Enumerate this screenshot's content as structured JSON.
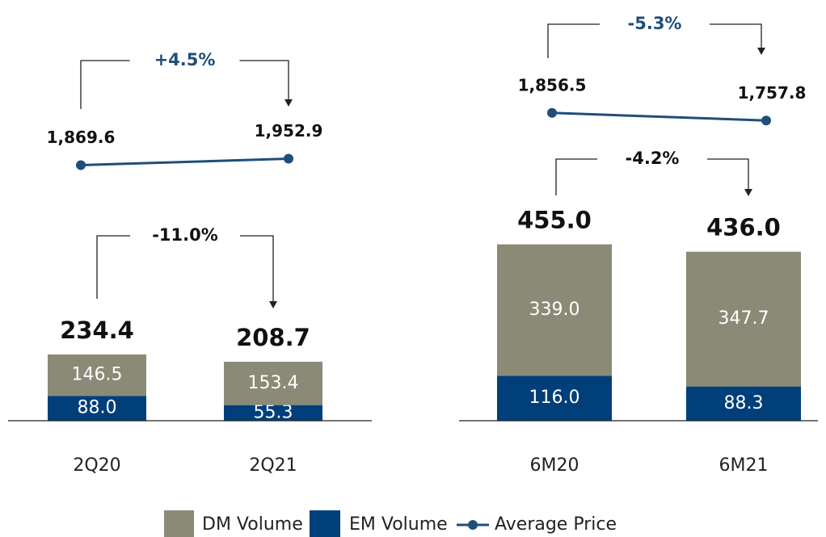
{
  "chart_data": [
    {
      "type": "bar",
      "stacked": true,
      "categories": [
        "2Q20",
        "2Q21"
      ],
      "series": [
        {
          "name": "DM Volume",
          "color": "#8b8a77",
          "values": [
            146.5,
            153.4
          ],
          "value_labels": [
            "146.5",
            "153.4"
          ]
        },
        {
          "name": "EM Volume",
          "color": "#003f7a",
          "values": [
            88.0,
            55.3
          ],
          "value_labels": [
            "88.0",
            "55.3"
          ]
        },
        {
          "name": "Average Price",
          "type": "line",
          "axis": "y2",
          "color": "#1f4e79",
          "values": [
            1869.6,
            1952.9
          ],
          "value_labels": [
            "1,869.6",
            "1,952.9"
          ]
        }
      ],
      "totals": [
        234.4,
        208.7
      ],
      "total_labels": [
        "234.4",
        "208.7"
      ],
      "volume_change": "-11.0%",
      "price_change": "+4.5%",
      "ylim": [
        0,
        600
      ],
      "y2lim": [
        1500,
        2000
      ]
    },
    {
      "type": "bar",
      "stacked": true,
      "categories": [
        "6M20",
        "6M21"
      ],
      "series": [
        {
          "color": "#8b8a77",
          "values": [
            339.0,
            347.7
          ],
          "value_labels": [
            "339.0",
            "347.7"
          ]
        },
        {
          "color": "#003f7a",
          "values": [
            116.0,
            88.3
          ],
          "value_labels": [
            "116.0",
            "88.3"
          ]
        },
        {
          "type": "line",
          "axis": "y2",
          "color": "#1f4e79",
          "values": [
            1856.5,
            1757.8
          ],
          "value_labels": [
            "1,856.5",
            "1,757.8"
          ]
        }
      ],
      "totals": [
        455.0,
        436.0
      ],
      "total_labels": [
        "455.0",
        "436.0"
      ],
      "volume_change": "-4.2%",
      "price_change": "-5.3%",
      "ylim": [
        0,
        500
      ],
      "y2lim": [
        1500,
        2000
      ]
    }
  ]
}
